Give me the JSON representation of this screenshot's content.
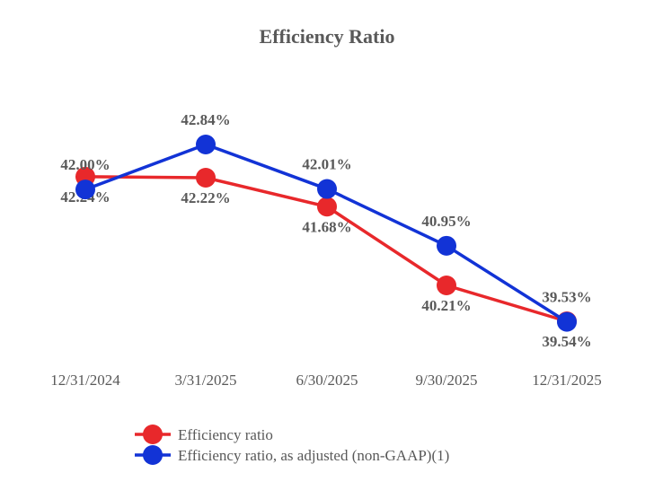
{
  "chart_data": {
    "type": "line",
    "title": "Efficiency Ratio",
    "xlabel": "",
    "ylabel": "",
    "categories": [
      "12/31/2024",
      "3/31/2025",
      "6/30/2025",
      "9/30/2025",
      "12/31/2025"
    ],
    "ylim": [
      39.0,
      43.5
    ],
    "grid": false,
    "legend_placement": "bottom",
    "series": [
      {
        "name": "Efficiency ratio",
        "color": "#e8282b",
        "values": [
          42.24,
          42.22,
          41.68,
          40.21,
          39.54
        ],
        "labels": [
          "42.24%",
          "42.22%",
          "41.68%",
          "40.21%",
          "39.54%"
        ],
        "label_position": "below"
      },
      {
        "name": "Efficiency ratio, as adjusted (non-GAAP)(1)",
        "color": "#1233d6",
        "values": [
          42.0,
          42.84,
          42.01,
          40.95,
          39.53
        ],
        "labels": [
          "42.00%",
          "42.84%",
          "42.01%",
          "40.95%",
          "39.53%"
        ],
        "label_position": "above"
      }
    ]
  }
}
